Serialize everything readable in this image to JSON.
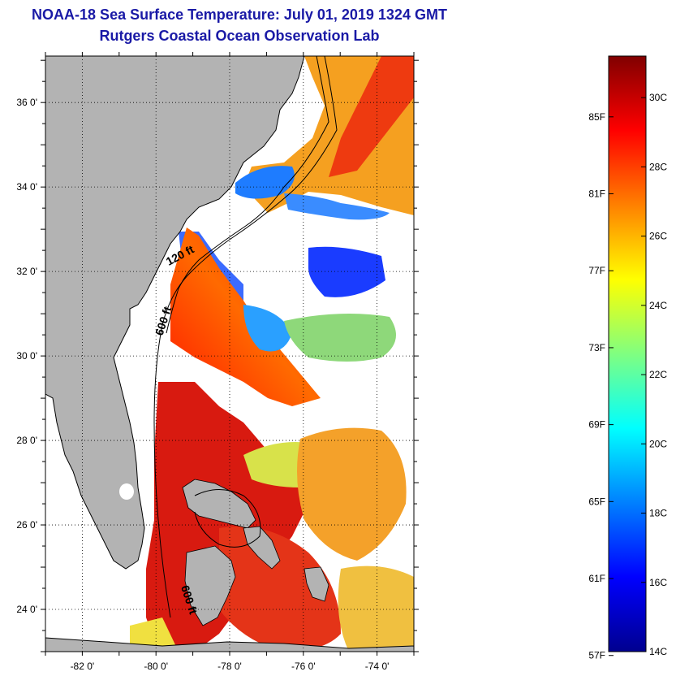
{
  "title": {
    "line1": "NOAA-18 Sea Surface Temperature:  July 01, 2019 1324 GMT",
    "line2": "Rutgers Coastal Ocean Observation Lab"
  },
  "map": {
    "lon_range": [
      -83,
      -73
    ],
    "lat_range": [
      23,
      37.1
    ],
    "lon_ticks": [
      {
        "value": -82,
        "label": "-82 0'"
      },
      {
        "value": -80,
        "label": "-80 0'"
      },
      {
        "value": -78,
        "label": "-78 0'"
      },
      {
        "value": -76,
        "label": "-76 0'"
      },
      {
        "value": -74,
        "label": "-74 0'"
      }
    ],
    "lat_ticks": [
      {
        "value": 24,
        "label": "24 0'"
      },
      {
        "value": 26,
        "label": "26 0'"
      },
      {
        "value": 28,
        "label": "28 0'"
      },
      {
        "value": 30,
        "label": "30 0'"
      },
      {
        "value": 32,
        "label": "32 0'"
      },
      {
        "value": 34,
        "label": "34 0'"
      },
      {
        "value": 36,
        "label": "36 0'"
      }
    ],
    "contour_labels": [
      {
        "text": "120 ft",
        "lon": -79.3,
        "lat": 32.3,
        "angle": -28
      },
      {
        "text": "600 ft",
        "lon": -79.7,
        "lat": 30.8,
        "angle": -72
      },
      {
        "text": "600 ft",
        "lon": -79.2,
        "lat": 24.2,
        "angle": 72
      }
    ],
    "colors": {
      "land": "#b3b3b3",
      "grid": "#000000",
      "ocean_cloud": "#ffffff"
    }
  },
  "colorbar": {
    "range_c": [
      14,
      31.2
    ],
    "celsius_ticks": [
      {
        "value": 14,
        "label": "14C"
      },
      {
        "value": 16,
        "label": "16C"
      },
      {
        "value": 18,
        "label": "18C"
      },
      {
        "value": 20,
        "label": "20C"
      },
      {
        "value": 22,
        "label": "22C"
      },
      {
        "value": 24,
        "label": "24C"
      },
      {
        "value": 26,
        "label": "26C"
      },
      {
        "value": 28,
        "label": "28C"
      },
      {
        "value": 30,
        "label": "30C"
      }
    ],
    "fahrenheit_ticks": [
      {
        "value": 57,
        "label": "57F"
      },
      {
        "value": 61,
        "label": "61F"
      },
      {
        "value": 65,
        "label": "65F"
      },
      {
        "value": 69,
        "label": "69F"
      },
      {
        "value": 73,
        "label": "73F"
      },
      {
        "value": 77,
        "label": "77F"
      },
      {
        "value": 81,
        "label": "81F"
      },
      {
        "value": 85,
        "label": "85F"
      }
    ],
    "stops": [
      "#00008f",
      "#0000ff",
      "#0080ff",
      "#00ffff",
      "#80ff80",
      "#ffff00",
      "#ff8000",
      "#ff0000",
      "#800000"
    ]
  }
}
